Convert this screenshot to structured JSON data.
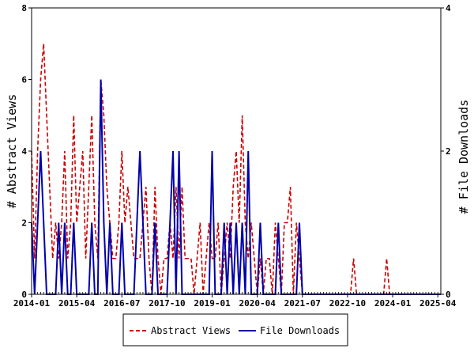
{
  "chart_data": {
    "type": "line",
    "title": "",
    "xlabel": "",
    "ylabel_left": "# Abstract Views",
    "ylabel_right": "# File Downloads",
    "x_ticks": [
      "2014-01",
      "2015-04",
      "2016-07",
      "2017-10",
      "2019-01",
      "2020-04",
      "2021-07",
      "2022-10",
      "2024-01",
      "2025-04"
    ],
    "x_range": [
      "2014-01",
      "2025-05"
    ],
    "ylim_left": [
      0,
      8
    ],
    "ylim_right": [
      0,
      4
    ],
    "y_ticks_left": [
      0,
      2,
      4,
      6,
      8
    ],
    "y_ticks_right": [
      0,
      2,
      4
    ],
    "grid": false,
    "legend_position": "bottom-center",
    "colors": {
      "abstract_views": "#cc0000",
      "file_downloads": "#0000aa"
    },
    "series": [
      {
        "name": "Abstract Views",
        "axis": "left",
        "style": "dashed",
        "points": [
          [
            "2014-01",
            4
          ],
          [
            "2014-02",
            1
          ],
          [
            "2014-03",
            4
          ],
          [
            "2014-04",
            6
          ],
          [
            "2014-05",
            7
          ],
          [
            "2014-06",
            5
          ],
          [
            "2014-07",
            3
          ],
          [
            "2014-08",
            1
          ],
          [
            "2014-09",
            2
          ],
          [
            "2014-10",
            1
          ],
          [
            "2014-11",
            2
          ],
          [
            "2014-12",
            4
          ],
          [
            "2015-01",
            1
          ],
          [
            "2015-02",
            2
          ],
          [
            "2015-03",
            5
          ],
          [
            "2015-04",
            2
          ],
          [
            "2015-05",
            3
          ],
          [
            "2015-06",
            4
          ],
          [
            "2015-07",
            1
          ],
          [
            "2015-08",
            3
          ],
          [
            "2015-09",
            5
          ],
          [
            "2015-10",
            2
          ],
          [
            "2015-11",
            1
          ],
          [
            "2015-12",
            6
          ],
          [
            "2016-01",
            5
          ],
          [
            "2016-02",
            3
          ],
          [
            "2016-03",
            2
          ],
          [
            "2016-04",
            1
          ],
          [
            "2016-05",
            1
          ],
          [
            "2016-06",
            2
          ],
          [
            "2016-07",
            4
          ],
          [
            "2016-08",
            2
          ],
          [
            "2016-09",
            3
          ],
          [
            "2016-10",
            2
          ],
          [
            "2016-11",
            1
          ],
          [
            "2016-12",
            1
          ],
          [
            "2017-01",
            1
          ],
          [
            "2017-02",
            2
          ],
          [
            "2017-03",
            3
          ],
          [
            "2017-04",
            1
          ],
          [
            "2017-05",
            0
          ],
          [
            "2017-06",
            3
          ],
          [
            "2017-07",
            1
          ],
          [
            "2017-08",
            0
          ],
          [
            "2017-09",
            1
          ],
          [
            "2017-10",
            1
          ],
          [
            "2017-11",
            2
          ],
          [
            "2017-12",
            1
          ],
          [
            "2018-01",
            3
          ],
          [
            "2018-02",
            1
          ],
          [
            "2018-03",
            3
          ],
          [
            "2018-04",
            1
          ],
          [
            "2018-05",
            1
          ],
          [
            "2018-06",
            1
          ],
          [
            "2018-07",
            0
          ],
          [
            "2018-08",
            1
          ],
          [
            "2018-09",
            2
          ],
          [
            "2018-10",
            0
          ],
          [
            "2018-11",
            1
          ],
          [
            "2018-12",
            2
          ],
          [
            "2019-01",
            1
          ],
          [
            "2019-02",
            1
          ],
          [
            "2019-03",
            2
          ],
          [
            "2019-04",
            0
          ],
          [
            "2019-05",
            1
          ],
          [
            "2019-06",
            2
          ],
          [
            "2019-07",
            1
          ],
          [
            "2019-08",
            3
          ],
          [
            "2019-09",
            4
          ],
          [
            "2019-10",
            2
          ],
          [
            "2019-11",
            5
          ],
          [
            "2019-12",
            2
          ],
          [
            "2020-01",
            1
          ],
          [
            "2020-02",
            2
          ],
          [
            "2020-03",
            1
          ],
          [
            "2020-04",
            0
          ],
          [
            "2020-05",
            1
          ],
          [
            "2020-06",
            0
          ],
          [
            "2020-07",
            1
          ],
          [
            "2020-08",
            1
          ],
          [
            "2020-09",
            0
          ],
          [
            "2020-10",
            2
          ],
          [
            "2020-11",
            1
          ],
          [
            "2020-12",
            0
          ],
          [
            "2021-01",
            2
          ],
          [
            "2021-02",
            2
          ],
          [
            "2021-03",
            3
          ],
          [
            "2021-04",
            0
          ],
          [
            "2021-05",
            2
          ],
          [
            "2021-06",
            1
          ],
          [
            "2021-07",
            0
          ],
          [
            "2021-08",
            0
          ],
          [
            "2021-09",
            0
          ],
          [
            "2021-10",
            0
          ],
          [
            "2021-11",
            0
          ],
          [
            "2021-12",
            0
          ],
          [
            "2022-01",
            0
          ],
          [
            "2022-02",
            0
          ],
          [
            "2022-03",
            0
          ],
          [
            "2022-04",
            0
          ],
          [
            "2022-05",
            0
          ],
          [
            "2022-06",
            0
          ],
          [
            "2022-07",
            0
          ],
          [
            "2022-08",
            0
          ],
          [
            "2022-09",
            0
          ],
          [
            "2022-10",
            0
          ],
          [
            "2022-11",
            0
          ],
          [
            "2022-12",
            1
          ],
          [
            "2023-01",
            0
          ],
          [
            "2023-02",
            0
          ],
          [
            "2023-03",
            0
          ],
          [
            "2023-04",
            0
          ],
          [
            "2023-05",
            0
          ],
          [
            "2023-06",
            0
          ],
          [
            "2023-07",
            0
          ],
          [
            "2023-08",
            0
          ],
          [
            "2023-09",
            0
          ],
          [
            "2023-10",
            0
          ],
          [
            "2023-11",
            1
          ],
          [
            "2023-12",
            0
          ],
          [
            "2024-01",
            0
          ],
          [
            "2024-02",
            0
          ],
          [
            "2024-03",
            0
          ],
          [
            "2024-04",
            0
          ],
          [
            "2024-05",
            0
          ],
          [
            "2024-06",
            0
          ],
          [
            "2024-07",
            0
          ],
          [
            "2024-08",
            0
          ],
          [
            "2024-09",
            0
          ],
          [
            "2024-10",
            0
          ],
          [
            "2024-11",
            0
          ],
          [
            "2024-12",
            0
          ],
          [
            "2025-01",
            0
          ],
          [
            "2025-02",
            0
          ],
          [
            "2025-03",
            0
          ],
          [
            "2025-04",
            0
          ],
          [
            "2025-05",
            0
          ]
        ]
      },
      {
        "name": "File Downloads",
        "axis": "right",
        "style": "solid",
        "points": [
          [
            "2014-01",
            1
          ],
          [
            "2014-02",
            0
          ],
          [
            "2014-03",
            1
          ],
          [
            "2014-04",
            2
          ],
          [
            "2014-05",
            1
          ],
          [
            "2014-06",
            0
          ],
          [
            "2014-07",
            0
          ],
          [
            "2014-08",
            0
          ],
          [
            "2014-09",
            0
          ],
          [
            "2014-10",
            1
          ],
          [
            "2014-11",
            0
          ],
          [
            "2014-12",
            1
          ],
          [
            "2015-01",
            0
          ],
          [
            "2015-02",
            0
          ],
          [
            "2015-03",
            1
          ],
          [
            "2015-04",
            0
          ],
          [
            "2015-05",
            0
          ],
          [
            "2015-06",
            0
          ],
          [
            "2015-07",
            0
          ],
          [
            "2015-08",
            0
          ],
          [
            "2015-09",
            1
          ],
          [
            "2015-10",
            0
          ],
          [
            "2015-11",
            0
          ],
          [
            "2015-12",
            3
          ],
          [
            "2016-01",
            1
          ],
          [
            "2016-02",
            0
          ],
          [
            "2016-03",
            1
          ],
          [
            "2016-04",
            0
          ],
          [
            "2016-05",
            0
          ],
          [
            "2016-06",
            0
          ],
          [
            "2016-07",
            1
          ],
          [
            "2016-08",
            0
          ],
          [
            "2016-09",
            0
          ],
          [
            "2016-10",
            0
          ],
          [
            "2016-11",
            0
          ],
          [
            "2016-12",
            1
          ],
          [
            "2017-01",
            2
          ],
          [
            "2017-02",
            1
          ],
          [
            "2017-03",
            0
          ],
          [
            "2017-04",
            0
          ],
          [
            "2017-05",
            0
          ],
          [
            "2017-06",
            1
          ],
          [
            "2017-07",
            0
          ],
          [
            "2017-08",
            0
          ],
          [
            "2017-09",
            0
          ],
          [
            "2017-10",
            0
          ],
          [
            "2017-11",
            1
          ],
          [
            "2017-12",
            2
          ],
          [
            "2018-01",
            0
          ],
          [
            "2018-02",
            2
          ],
          [
            "2018-03",
            0
          ],
          [
            "2018-04",
            0
          ],
          [
            "2018-05",
            0
          ],
          [
            "2018-06",
            0
          ],
          [
            "2018-07",
            0
          ],
          [
            "2018-08",
            0
          ],
          [
            "2018-09",
            0
          ],
          [
            "2018-10",
            0
          ],
          [
            "2018-11",
            0
          ],
          [
            "2018-12",
            0
          ],
          [
            "2019-01",
            2
          ],
          [
            "2019-02",
            0
          ],
          [
            "2019-03",
            0
          ],
          [
            "2019-04",
            0
          ],
          [
            "2019-05",
            1
          ],
          [
            "2019-06",
            0
          ],
          [
            "2019-07",
            1
          ],
          [
            "2019-08",
            0
          ],
          [
            "2019-09",
            1
          ],
          [
            "2019-10",
            0
          ],
          [
            "2019-11",
            1
          ],
          [
            "2019-12",
            0
          ],
          [
            "2020-01",
            2
          ],
          [
            "2020-02",
            0
          ],
          [
            "2020-03",
            0
          ],
          [
            "2020-04",
            0
          ],
          [
            "2020-05",
            1
          ],
          [
            "2020-06",
            0
          ],
          [
            "2020-07",
            0
          ],
          [
            "2020-08",
            0
          ],
          [
            "2020-09",
            0
          ],
          [
            "2020-10",
            0
          ],
          [
            "2020-11",
            1
          ],
          [
            "2020-12",
            0
          ],
          [
            "2021-01",
            0
          ],
          [
            "2021-02",
            0
          ],
          [
            "2021-03",
            0
          ],
          [
            "2021-04",
            0
          ],
          [
            "2021-05",
            0
          ],
          [
            "2021-06",
            1
          ],
          [
            "2021-07",
            0
          ],
          [
            "2021-08",
            0
          ],
          [
            "2021-09",
            0
          ],
          [
            "2021-10",
            0
          ],
          [
            "2021-11",
            0
          ],
          [
            "2021-12",
            0
          ],
          [
            "2022-01",
            0
          ],
          [
            "2022-02",
            0
          ],
          [
            "2022-03",
            0
          ],
          [
            "2022-04",
            0
          ],
          [
            "2022-05",
            0
          ],
          [
            "2022-06",
            0
          ],
          [
            "2022-07",
            0
          ],
          [
            "2022-08",
            0
          ],
          [
            "2022-09",
            0
          ],
          [
            "2022-10",
            0
          ],
          [
            "2022-11",
            0
          ],
          [
            "2022-12",
            0
          ],
          [
            "2023-01",
            0
          ],
          [
            "2023-02",
            0
          ],
          [
            "2023-03",
            0
          ],
          [
            "2023-04",
            0
          ],
          [
            "2023-05",
            0
          ],
          [
            "2023-06",
            0
          ],
          [
            "2023-07",
            0
          ],
          [
            "2023-08",
            0
          ],
          [
            "2023-09",
            0
          ],
          [
            "2023-10",
            0
          ],
          [
            "2023-11",
            0
          ],
          [
            "2023-12",
            0
          ],
          [
            "2024-01",
            0
          ],
          [
            "2024-02",
            0
          ],
          [
            "2024-03",
            0
          ],
          [
            "2024-04",
            0
          ],
          [
            "2024-05",
            0
          ],
          [
            "2024-06",
            0
          ],
          [
            "2024-07",
            0
          ],
          [
            "2024-08",
            0
          ],
          [
            "2024-09",
            0
          ],
          [
            "2024-10",
            0
          ],
          [
            "2024-11",
            0
          ],
          [
            "2024-12",
            0
          ],
          [
            "2025-01",
            0
          ],
          [
            "2025-02",
            0
          ],
          [
            "2025-03",
            0
          ],
          [
            "2025-04",
            0
          ],
          [
            "2025-05",
            0
          ]
        ]
      }
    ]
  }
}
